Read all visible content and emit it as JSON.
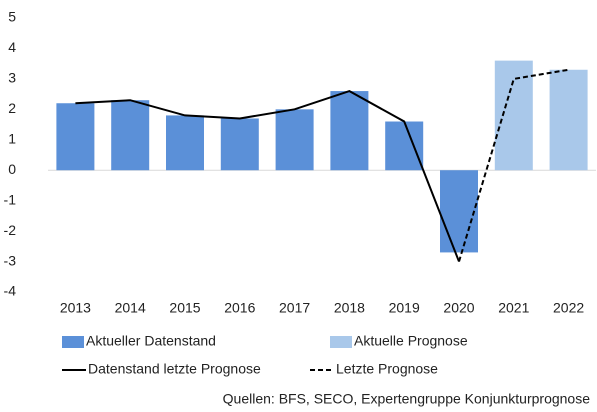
{
  "chart_data": {
    "type": "bar",
    "categories": [
      "2013",
      "2014",
      "2015",
      "2016",
      "2017",
      "2018",
      "2019",
      "2020",
      "2021",
      "2022"
    ],
    "series": [
      {
        "name": "Aktueller Datenstand",
        "kind": "bar",
        "color": "#5b90d8",
        "values": [
          2.2,
          2.3,
          1.8,
          1.7,
          2.0,
          2.6,
          1.6,
          -2.7,
          null,
          null
        ]
      },
      {
        "name": "Aktuelle Prognose",
        "kind": "bar",
        "color": "#a9c8ea",
        "values": [
          null,
          null,
          null,
          null,
          null,
          null,
          null,
          null,
          3.6,
          3.3
        ]
      },
      {
        "name": "Datenstand letzte Prognose",
        "kind": "line",
        "color": "#000000",
        "dashed": false,
        "values": [
          2.2,
          2.3,
          1.8,
          1.7,
          2.0,
          2.6,
          1.6,
          -3.0,
          null,
          null
        ]
      },
      {
        "name": "Letzte Prognose",
        "kind": "line",
        "color": "#000000",
        "dashed": true,
        "values": [
          null,
          null,
          null,
          null,
          null,
          null,
          null,
          -3.0,
          3.0,
          3.3
        ]
      }
    ],
    "ylim": [
      -4,
      5
    ],
    "yticks": [
      -4,
      -3,
      -2,
      -1,
      0,
      1,
      2,
      3,
      4,
      5
    ],
    "source": "Quellen: BFS, SECO, Expertengruppe Konjunkturprognose"
  }
}
